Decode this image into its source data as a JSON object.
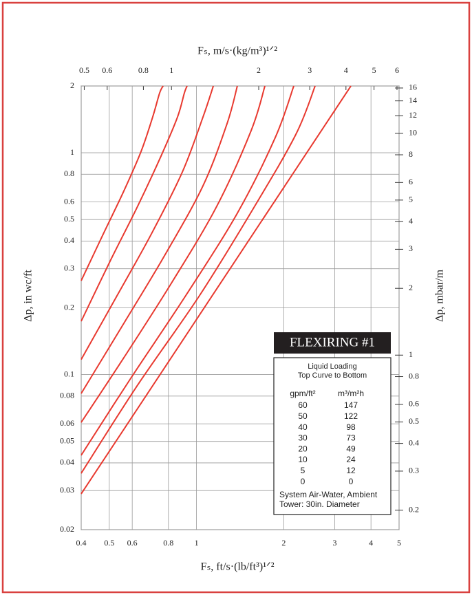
{
  "chart_data": {
    "type": "line",
    "x_label": "Fₛ, ft/s·(lb/ft³)¹ᐟ²",
    "x2_label": "Fₛ, m/s·(kg/m³)¹ᐟ²",
    "y_label": "Δp, in wc/ft",
    "y2_label": "Δp, mbar/m",
    "log_x": true,
    "log_y": true,
    "grid": true,
    "xlim": [
      0.4,
      5
    ],
    "xticks": [
      0.4,
      0.5,
      0.6,
      0.8,
      1,
      2,
      3,
      4,
      5
    ],
    "x2lim": [
      0.488,
      6.1
    ],
    "x2ticks": [
      0.5,
      0.6,
      0.8,
      1,
      2,
      3,
      4,
      5,
      6
    ],
    "ylim": [
      0.02,
      2
    ],
    "yticks": [
      0.02,
      0.03,
      0.04,
      0.05,
      0.06,
      0.08,
      0.1,
      0.2,
      0.3,
      0.4,
      0.5,
      0.6,
      0.8,
      1,
      2
    ],
    "y2lim": [
      0.1634,
      16.34
    ],
    "y2ticks": [
      0.2,
      0.3,
      0.4,
      0.5,
      0.6,
      0.8,
      1,
      2,
      3,
      4,
      5,
      6,
      8,
      10,
      12,
      14,
      16
    ],
    "series": [
      {
        "color": "#e8392f",
        "x": [
          0.4,
          0.477,
          0.561,
          0.644,
          0.706,
          0.746,
          0.767
        ],
        "values": [
          0.265,
          0.431,
          0.671,
          1.015,
          1.45,
          1.86,
          2
        ]
      },
      {
        "color": "#e8392f",
        "x": [
          0.4,
          0.503,
          0.626,
          0.758,
          0.86,
          0.908,
          0.928
        ],
        "values": [
          0.174,
          0.324,
          0.573,
          0.98,
          1.45,
          1.86,
          2
        ]
      },
      {
        "color": "#e8392f",
        "x": [
          0.4,
          0.532,
          0.699,
          0.894,
          1.053,
          1.143
        ],
        "values": [
          0.117,
          0.227,
          0.431,
          0.82,
          1.45,
          2
        ]
      },
      {
        "color": "#e8392f",
        "x": [
          0.4,
          0.561,
          0.78,
          1.053,
          1.274,
          1.383
        ],
        "values": [
          0.0822,
          0.17,
          0.348,
          0.71,
          1.35,
          2
        ]
      },
      {
        "color": "#e8392f",
        "x": [
          0.4,
          0.561,
          0.823,
          1.174,
          1.544,
          1.722
        ],
        "values": [
          0.0609,
          0.119,
          0.261,
          0.573,
          1.26,
          2
        ]
      },
      {
        "color": "#e8392f",
        "x": [
          0.4,
          0.593,
          0.918,
          1.383,
          1.869,
          2.166
        ],
        "values": [
          0.0433,
          0.0962,
          0.227,
          0.534,
          1.17,
          2
        ]
      },
      {
        "color": "#e8392f",
        "x": [
          0.4,
          0.626,
          1.024,
          1.586,
          2.202,
          2.566
        ],
        "values": [
          0.0359,
          0.0896,
          0.227,
          0.573,
          1.21,
          2
        ]
      },
      {
        "color": "#e8392f",
        "x": [
          0.4,
          3.41
        ],
        "values": [
          0.029,
          2
        ]
      }
    ],
    "legend": {
      "title": "FLEXIRING #1",
      "lines": [
        "Liquid Loading",
        "Top Curve to Bottom"
      ],
      "columns": [
        "gpm/ft²",
        "m³/m²h"
      ],
      "rows": [
        [
          60,
          147
        ],
        [
          50,
          122
        ],
        [
          40,
          98
        ],
        [
          30,
          73
        ],
        [
          20,
          49
        ],
        [
          10,
          24
        ],
        [
          5,
          12
        ],
        [
          0,
          0
        ]
      ],
      "notes": [
        "System Air-Water, Ambient",
        "Tower: 30in. Diameter"
      ]
    }
  }
}
